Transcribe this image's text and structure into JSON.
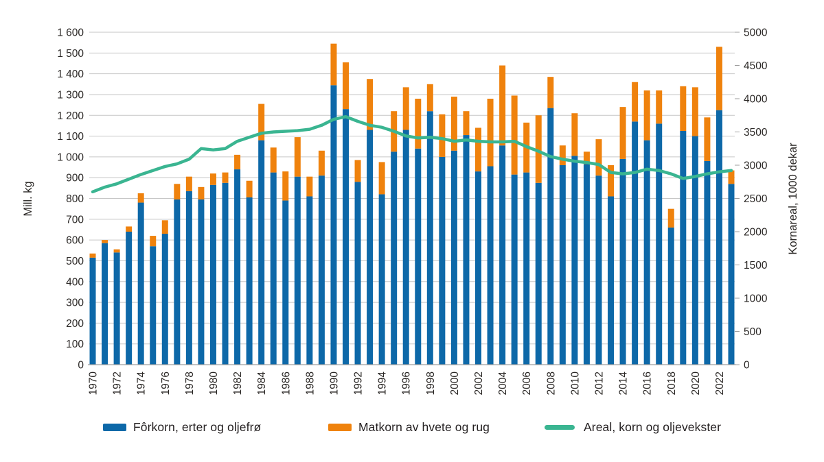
{
  "chart_data": {
    "type": "bar",
    "subtype": "stacked-bars-with-line-overlay",
    "categories": [
      1970,
      1971,
      1972,
      1973,
      1974,
      1975,
      1976,
      1977,
      1978,
      1979,
      1980,
      1981,
      1982,
      1983,
      1984,
      1985,
      1986,
      1987,
      1988,
      1989,
      1990,
      1991,
      1992,
      1993,
      1994,
      1995,
      1996,
      1997,
      1998,
      1999,
      2000,
      2001,
      2002,
      2003,
      2004,
      2005,
      2006,
      2007,
      2008,
      2009,
      2010,
      2011,
      2012,
      2013,
      2014,
      2015,
      2016,
      2017,
      2018,
      2019,
      2020,
      2021,
      2022,
      2023
    ],
    "series": [
      {
        "name": "Fôrkorn, erter og oljefrø",
        "type": "bar",
        "stack": "production",
        "axis": "left",
        "color": "#0d68a8",
        "values": [
          515,
          585,
          540,
          640,
          780,
          570,
          630,
          795,
          835,
          795,
          865,
          875,
          940,
          805,
          1080,
          925,
          790,
          905,
          810,
          910,
          1345,
          1230,
          880,
          1130,
          820,
          1025,
          1130,
          1040,
          1220,
          1000,
          1030,
          1105,
          930,
          955,
          1055,
          915,
          925,
          875,
          1235,
          960,
          1005,
          965,
          910,
          810,
          990,
          1170,
          1080,
          1160,
          660,
          1125,
          1100,
          980,
          1225,
          870
        ]
      },
      {
        "name": "Matkorn av hvete og rug",
        "type": "bar",
        "stack": "production",
        "axis": "left",
        "color": "#ef820d",
        "values": [
          20,
          15,
          15,
          25,
          45,
          50,
          65,
          75,
          70,
          60,
          55,
          50,
          70,
          80,
          175,
          120,
          140,
          190,
          95,
          120,
          200,
          225,
          105,
          245,
          155,
          195,
          205,
          240,
          130,
          205,
          260,
          115,
          210,
          325,
          385,
          380,
          240,
          325,
          150,
          95,
          205,
          60,
          175,
          150,
          250,
          190,
          240,
          160,
          90,
          215,
          235,
          210,
          305,
          65
        ]
      },
      {
        "name": "Areal, korn og oljevekster",
        "type": "line",
        "axis": "right",
        "color": "#3ab591",
        "values": [
          2600,
          2670,
          2720,
          2790,
          2860,
          2920,
          2980,
          3020,
          3090,
          3250,
          3230,
          3250,
          3360,
          3420,
          3480,
          3500,
          3510,
          3520,
          3540,
          3600,
          3690,
          3730,
          3660,
          3600,
          3570,
          3510,
          3440,
          3410,
          3420,
          3400,
          3360,
          3380,
          3360,
          3350,
          3350,
          3360,
          3280,
          3210,
          3130,
          3090,
          3060,
          3040,
          3010,
          2890,
          2870,
          2890,
          2940,
          2920,
          2870,
          2800,
          2830,
          2870,
          2900,
          2920
        ]
      }
    ],
    "left_axis": {
      "title": "Mill. kg",
      "min": 0,
      "max": 1600,
      "step": 100,
      "tick_labels": [
        "1 600",
        "1 500",
        "1 400",
        "1 300",
        "1 200",
        "1 100",
        "1 000",
        "900",
        "800",
        "700",
        "600",
        "500",
        "400",
        "300",
        "200",
        "100",
        "0"
      ]
    },
    "right_axis": {
      "title": "Kornareal, 1000 dekar",
      "min": 0,
      "max": 5000,
      "step": 500,
      "tick_labels": [
        "5000",
        "4500",
        "4000",
        "3500",
        "3000",
        "2500",
        "2000",
        "1500",
        "1000",
        "500",
        "0"
      ]
    },
    "x_axis": {
      "tick_labels": [
        "1970",
        "1972",
        "1974",
        "1976",
        "1978",
        "1980",
        "1982",
        "1984",
        "1986",
        "1988",
        "1990",
        "1992",
        "1994",
        "1996",
        "1998",
        "2000",
        "2002",
        "2004",
        "2006",
        "2008",
        "2010",
        "2012",
        "2014",
        "2016",
        "2018",
        "2020",
        "2022"
      ]
    },
    "grid": true,
    "legend_position": "bottom"
  },
  "legend": {
    "items": [
      {
        "label": "Fôrkorn, erter og oljefrø",
        "color": "#0d68a8",
        "swatch": "bar"
      },
      {
        "label": "Matkorn av hvete og rug",
        "color": "#ef820d",
        "swatch": "bar"
      },
      {
        "label": "Areal, korn og oljevekster",
        "color": "#3ab591",
        "swatch": "line"
      }
    ]
  },
  "colors": {
    "forkorn_blue": "#0d68a8",
    "matkorn_orange": "#ef820d",
    "areal_green": "#3ab591",
    "gridline": "#c6c6c6",
    "axis_line": "#9e9e9e",
    "text": "#2b2826"
  }
}
